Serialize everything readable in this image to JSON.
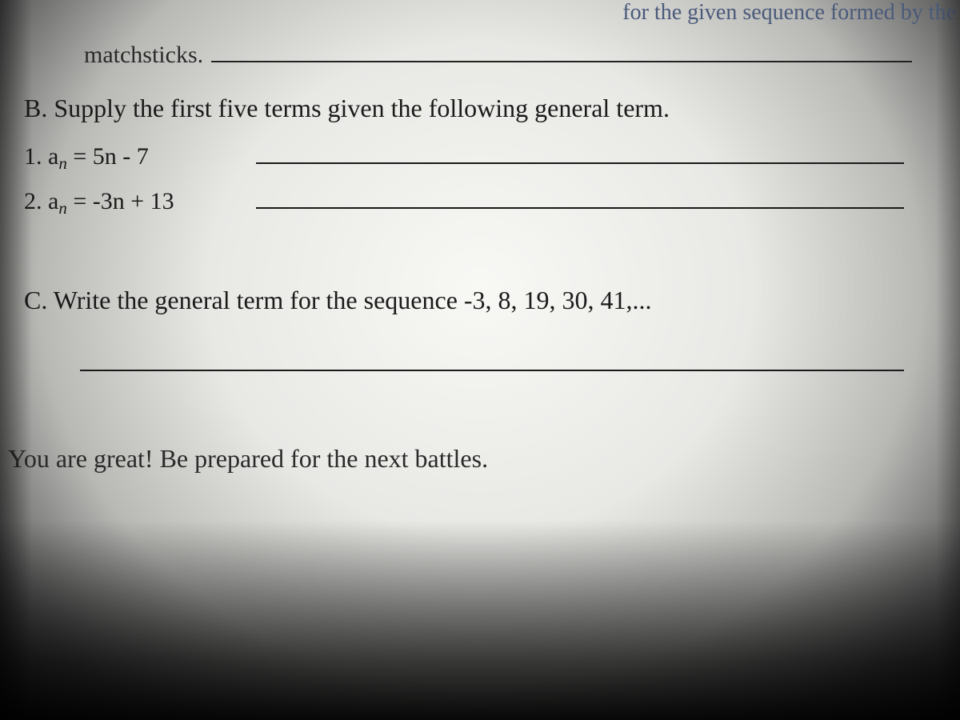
{
  "partial_top_text": "for the given sequence formed by the",
  "matchsticks_label": "matchsticks.",
  "section_b": {
    "title": "B. Supply the first five terms given the following general term.",
    "items": [
      {
        "label_prefix": "1. a",
        "label_sub": "n",
        "label_suffix": " = 5n - 7"
      },
      {
        "label_prefix": "2. a",
        "label_sub": "n",
        "label_suffix": " = -3n + 13"
      }
    ]
  },
  "section_c": {
    "title": "C. Write the general term for the sequence -3, 8, 19, 30, 41,..."
  },
  "footer": "You are great! Be prepared for the next battles.",
  "colors": {
    "text_primary": "#1a1a1a",
    "text_faded": "#4a5a7a",
    "line": "#1a1a1a"
  },
  "typography": {
    "body_fontsize": 30,
    "title_fontsize": 32,
    "font_family": "Times New Roman"
  }
}
